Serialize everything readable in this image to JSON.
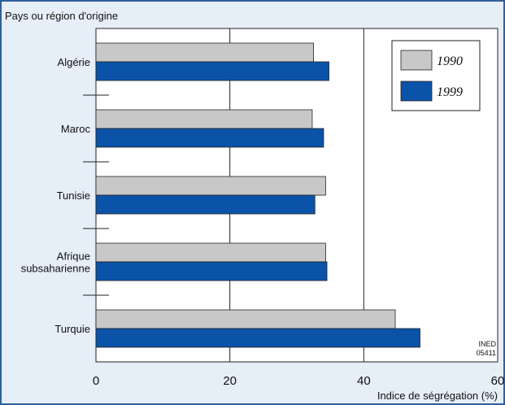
{
  "chart_data": {
    "type": "bar",
    "orientation": "horizontal",
    "y_axis_title": "Pays ou région d'origine",
    "x_axis_title": "Indice de ségrégation (%)",
    "categories": [
      [
        "Algérie"
      ],
      [
        "Maroc"
      ],
      [
        "Tunisie"
      ],
      [
        "Afrique",
        "subsaharienne"
      ],
      [
        "Turquie"
      ]
    ],
    "series": [
      {
        "name": "1990",
        "color": "#c8c8c8",
        "values": [
          32.5,
          32.3,
          34.3,
          34.3,
          44.7
        ]
      },
      {
        "name": "1999",
        "color": "#0a53a8",
        "values": [
          34.8,
          34.0,
          32.7,
          34.5,
          48.4
        ]
      }
    ],
    "xlim": [
      0,
      60
    ],
    "xticks": [
      "0",
      "20",
      "40",
      "60"
    ],
    "grid": "vertical",
    "legend_position": "top-right",
    "source_note": [
      "INED",
      "05411"
    ]
  }
}
